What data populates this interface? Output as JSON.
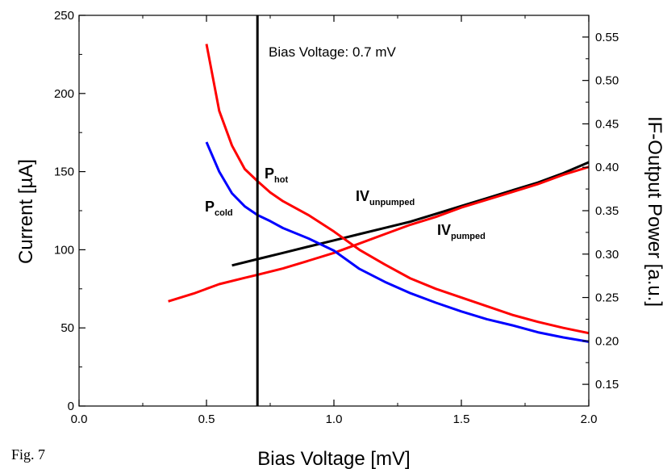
{
  "caption": "Fig. 7",
  "chart_data": {
    "type": "line",
    "xlabel": "Bias Voltage [mV]",
    "ylabel": "Current [µA]",
    "y2label": "IF-Output Power [a.u.]",
    "xlim": [
      0.0,
      2.0
    ],
    "ylim": [
      0,
      250
    ],
    "y2lim": [
      0.125,
      0.575
    ],
    "x_ticks": [
      "0.0",
      "0.5",
      "1.0",
      "1.5",
      "2.0"
    ],
    "y_ticks": [
      "0",
      "50",
      "100",
      "150",
      "200",
      "250"
    ],
    "y2_ticks": [
      "0.15",
      "0.20",
      "0.25",
      "0.30",
      "0.35",
      "0.40",
      "0.45",
      "0.50",
      "0.55"
    ],
    "grid": false,
    "annotation": "Bias Voltage: 0.7 mV",
    "marker_x": 0.7,
    "series": [
      {
        "label_main": "IV",
        "label_sub": "unpumped",
        "axis": "left",
        "color": "#000000",
        "x": [
          0.6,
          0.7,
          0.8,
          0.9,
          1.0,
          1.1,
          1.2,
          1.3,
          1.4,
          1.5,
          1.6,
          1.7,
          1.8,
          1.9,
          2.0
        ],
        "y": [
          90,
          94,
          98,
          102,
          106,
          110,
          114,
          118,
          123,
          128,
          133,
          138,
          143,
          149,
          156
        ]
      },
      {
        "label_main": "IV",
        "label_sub": "pumped",
        "axis": "left",
        "color": "#ff0000",
        "x": [
          0.35,
          0.45,
          0.55,
          0.65,
          0.7,
          0.8,
          0.9,
          1.0,
          1.1,
          1.2,
          1.3,
          1.4,
          1.5,
          1.6,
          1.7,
          1.8,
          1.9,
          2.0
        ],
        "y": [
          67,
          72,
          78,
          82,
          84,
          88,
          93,
          98,
          104,
          110,
          116,
          121,
          127,
          132,
          137,
          142,
          148,
          153
        ]
      },
      {
        "label_main": "P",
        "label_sub": "hot",
        "axis": "right",
        "color": "#ff0000",
        "x": [
          0.5,
          0.55,
          0.6,
          0.65,
          0.7,
          0.75,
          0.8,
          0.9,
          1.0,
          1.1,
          1.2,
          1.3,
          1.4,
          1.5,
          1.6,
          1.7,
          1.8,
          1.9,
          2.0
        ],
        "y": [
          0.542,
          0.465,
          0.425,
          0.398,
          0.384,
          0.371,
          0.361,
          0.345,
          0.326,
          0.305,
          0.288,
          0.272,
          0.26,
          0.25,
          0.24,
          0.23,
          0.222,
          0.215,
          0.209
        ]
      },
      {
        "label_main": "P",
        "label_sub": "cold",
        "axis": "right",
        "color": "#0000ff",
        "x": [
          0.5,
          0.55,
          0.6,
          0.65,
          0.7,
          0.75,
          0.8,
          0.9,
          1.0,
          1.1,
          1.2,
          1.3,
          1.4,
          1.5,
          1.6,
          1.7,
          1.8,
          1.9,
          2.0
        ],
        "y": [
          0.429,
          0.395,
          0.37,
          0.355,
          0.345,
          0.338,
          0.33,
          0.318,
          0.304,
          0.283,
          0.268,
          0.255,
          0.244,
          0.234,
          0.225,
          0.218,
          0.21,
          0.204,
          0.199
        ]
      }
    ]
  }
}
